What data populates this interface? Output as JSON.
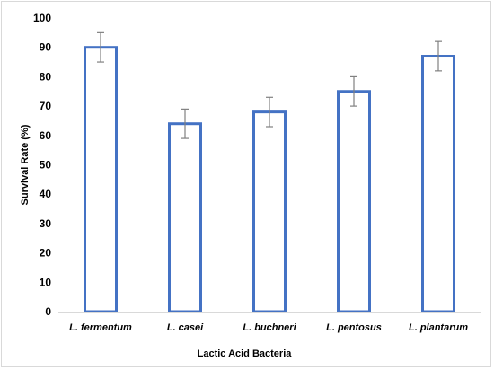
{
  "chart_data": {
    "type": "bar",
    "title": "",
    "xlabel": "Lactic Acid Bacteria",
    "ylabel": "Survival Rate (%)",
    "ylim": [
      0,
      100
    ],
    "yticks": [
      "0",
      "10",
      "20",
      "30",
      "40",
      "50",
      "60",
      "70",
      "80",
      "90",
      "100"
    ],
    "grid": false,
    "legend": "none",
    "categories": [
      "L. fermentum",
      "L. casei",
      "L. buchneri",
      "L. pentosus",
      "L. plantarum"
    ],
    "values": [
      90,
      64,
      68,
      75,
      87
    ],
    "error": [
      5,
      5,
      5,
      5,
      5
    ],
    "bar_fill": "#ffffff",
    "bar_stroke": "#4472c4",
    "error_color": "#808080",
    "axis_color": "#000000"
  }
}
